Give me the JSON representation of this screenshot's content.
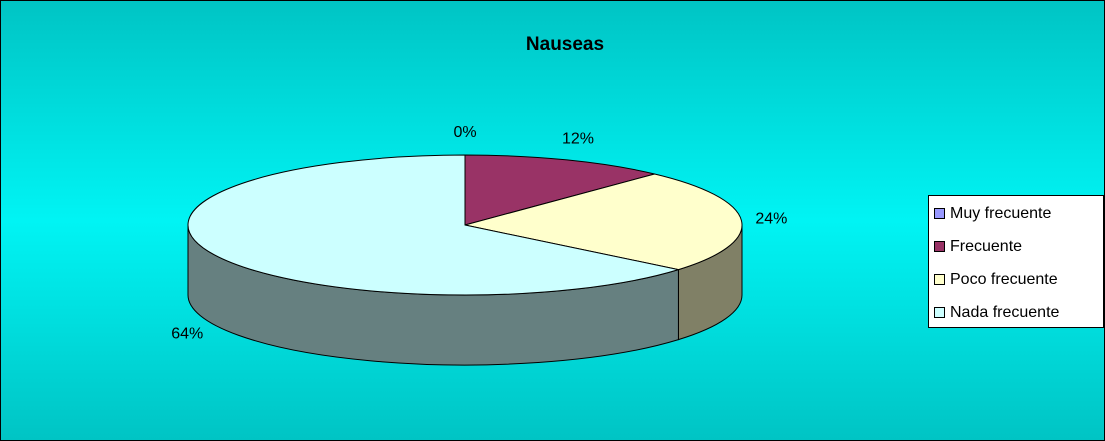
{
  "chart_data": {
    "type": "pie",
    "title": "Nauseas",
    "categories": [
      "Muy frecuente",
      "Frecuente",
      "Poco frecuente",
      "Nada frecuente"
    ],
    "values": [
      0,
      12,
      24,
      64
    ],
    "value_labels": [
      "0%",
      "12%",
      "24%",
      "64%"
    ],
    "colors": [
      "#9999ff",
      "#993366",
      "#ffffcc",
      "#ccffff"
    ],
    "legend": "right"
  }
}
